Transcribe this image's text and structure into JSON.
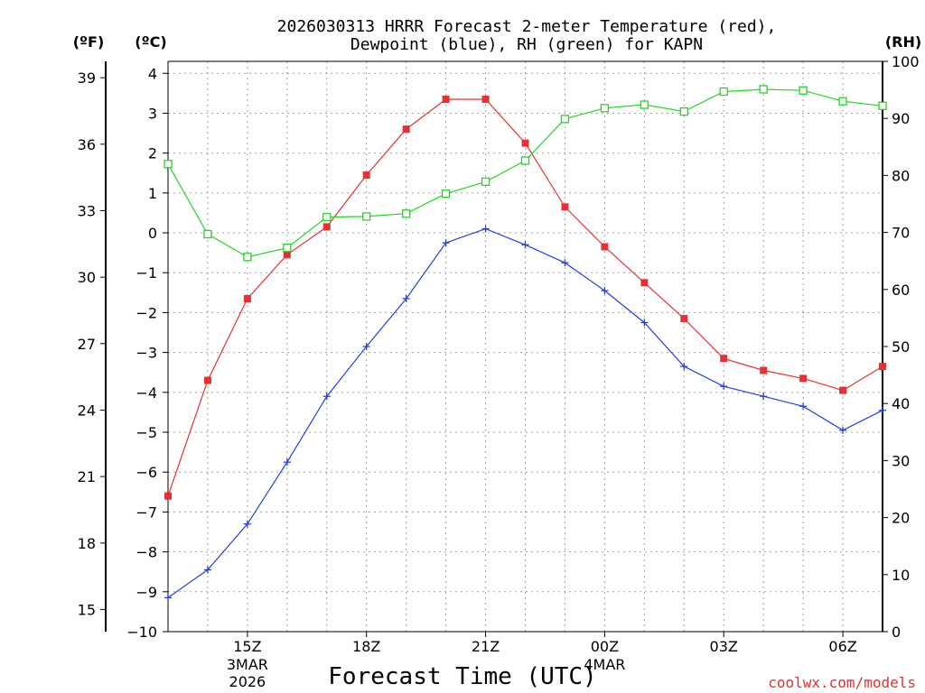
{
  "chart_data": {
    "type": "line",
    "title": "2026030313 HRRR Forecast 2-meter Temperature (red),",
    "subtitle": "Dewpoint (blue), RH (green) for KAPN",
    "xlabel": "Forecast Time (UTC)",
    "credit": "coolwx.com/models",
    "units": {
      "fahrenheit": "(ºF)",
      "celsius": "(ºC)",
      "rh": "(RH)"
    },
    "x_hours": [
      0,
      1,
      2,
      3,
      4,
      5,
      6,
      7,
      8,
      9,
      10,
      11,
      12,
      13,
      14,
      15,
      16,
      17,
      18
    ],
    "x_ticks": [
      {
        "hour": 2,
        "label": "15Z",
        "sub1": "3MAR",
        "sub2": "2026"
      },
      {
        "hour": 5,
        "label": "18Z",
        "sub1": "",
        "sub2": ""
      },
      {
        "hour": 8,
        "label": "21Z",
        "sub1": "",
        "sub2": ""
      },
      {
        "hour": 11,
        "label": "00Z",
        "sub1": "4MAR",
        "sub2": ""
      },
      {
        "hour": 14,
        "label": "03Z",
        "sub1": "",
        "sub2": ""
      },
      {
        "hour": 17,
        "label": "06Z",
        "sub1": "",
        "sub2": ""
      }
    ],
    "y_celsius": {
      "min": -10,
      "max": 4.3,
      "ticks": [
        4,
        3,
        2,
        1,
        0,
        -1,
        -2,
        -3,
        -4,
        -5,
        -6,
        -7,
        -8,
        -9,
        -10
      ],
      "labels": [
        "4",
        "3",
        "2",
        "1",
        "0",
        "−1",
        "−2",
        "−3",
        "−4",
        "−5",
        "−6",
        "−7",
        "−8",
        "−9",
        "−10"
      ]
    },
    "y_fahrenheit": {
      "ticks": [
        39,
        36,
        33,
        30,
        27,
        24,
        21,
        18,
        15
      ],
      "labels": [
        "39",
        "36",
        "33",
        "30",
        "27",
        "24",
        "21",
        "18",
        "15"
      ]
    },
    "y_rh": {
      "min": 0,
      "max": 100,
      "ticks": [
        100,
        90,
        80,
        70,
        60,
        50,
        40,
        30,
        20,
        10,
        0
      ],
      "labels": [
        "100",
        "90",
        "80",
        "70",
        "60",
        "50",
        "40",
        "30",
        "20",
        "10",
        "0"
      ]
    },
    "series": [
      {
        "name": "Temperature",
        "axis": "celsius",
        "color": "#e83030",
        "marker": "filled-square",
        "values": [
          -6.6,
          -3.7,
          -1.65,
          -0.55,
          0.15,
          1.45,
          2.6,
          3.35,
          3.35,
          2.25,
          0.65,
          -0.35,
          -1.25,
          -2.15,
          -3.15,
          -3.45,
          -3.65,
          -3.95,
          -3.35
        ]
      },
      {
        "name": "Dewpoint",
        "axis": "celsius",
        "color": "#2040e8",
        "marker": "plus",
        "values": [
          -9.15,
          -8.45,
          -7.3,
          -5.75,
          -4.1,
          -2.85,
          -1.65,
          -0.25,
          0.1,
          -0.3,
          -0.75,
          -1.45,
          -2.25,
          -3.35,
          -3.85,
          -4.1,
          -4.35,
          -4.95,
          -4.45
        ]
      },
      {
        "name": "RH",
        "axis": "rh",
        "color": "#20d820",
        "marker": "open-square",
        "values": [
          82,
          69.7,
          65.7,
          67.3,
          72.7,
          72.8,
          73.3,
          76.8,
          78.9,
          82.6,
          89.9,
          91.8,
          92.4,
          91.2,
          94.7,
          95.1,
          94.9,
          93.0,
          92.2
        ]
      }
    ]
  }
}
